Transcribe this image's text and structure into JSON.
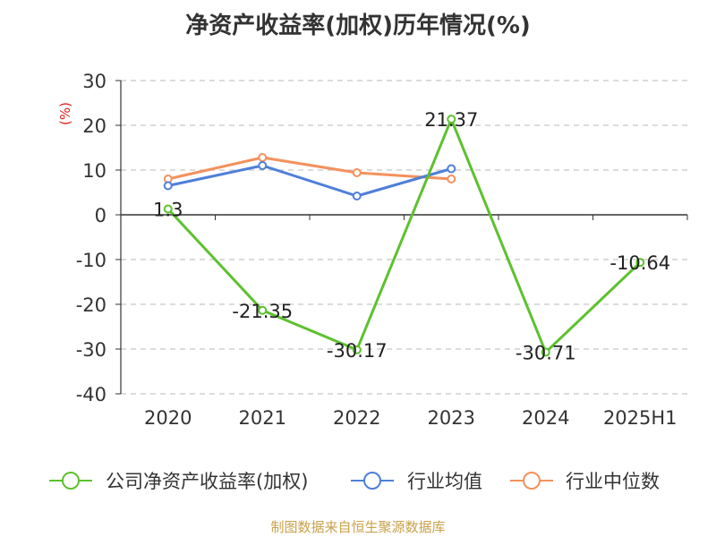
{
  "chart_data": {
    "type": "line",
    "title": "净资产收益率(加权)历年情况(%)",
    "ylabel": "(%)",
    "categories": [
      "2020",
      "2021",
      "2022",
      "2023",
      "2024",
      "2025H1"
    ],
    "ylim": [
      -40,
      30
    ],
    "yticks": [
      30,
      20,
      10,
      0,
      -10,
      -20,
      -30,
      -40
    ],
    "grid": true,
    "legend_position": "bottom",
    "series": [
      {
        "name": "公司净资产收益率(加权)",
        "color": "#5dc12e",
        "values": [
          1.3,
          -21.35,
          -30.17,
          21.37,
          -30.71,
          -10.64
        ],
        "labels": [
          "1.3",
          "-21.35",
          "-30.17",
          "21.37",
          "-30.71",
          "-10.64"
        ]
      },
      {
        "name": "行业均值",
        "color": "#4f7fd9",
        "values": [
          6.5,
          11.0,
          4.2,
          10.3,
          null,
          null
        ]
      },
      {
        "name": "行业中位数",
        "color": "#f4915d",
        "values": [
          8.0,
          12.8,
          9.4,
          8.0,
          null,
          null
        ]
      }
    ]
  },
  "source": "制图数据来自恒生聚源数据库"
}
